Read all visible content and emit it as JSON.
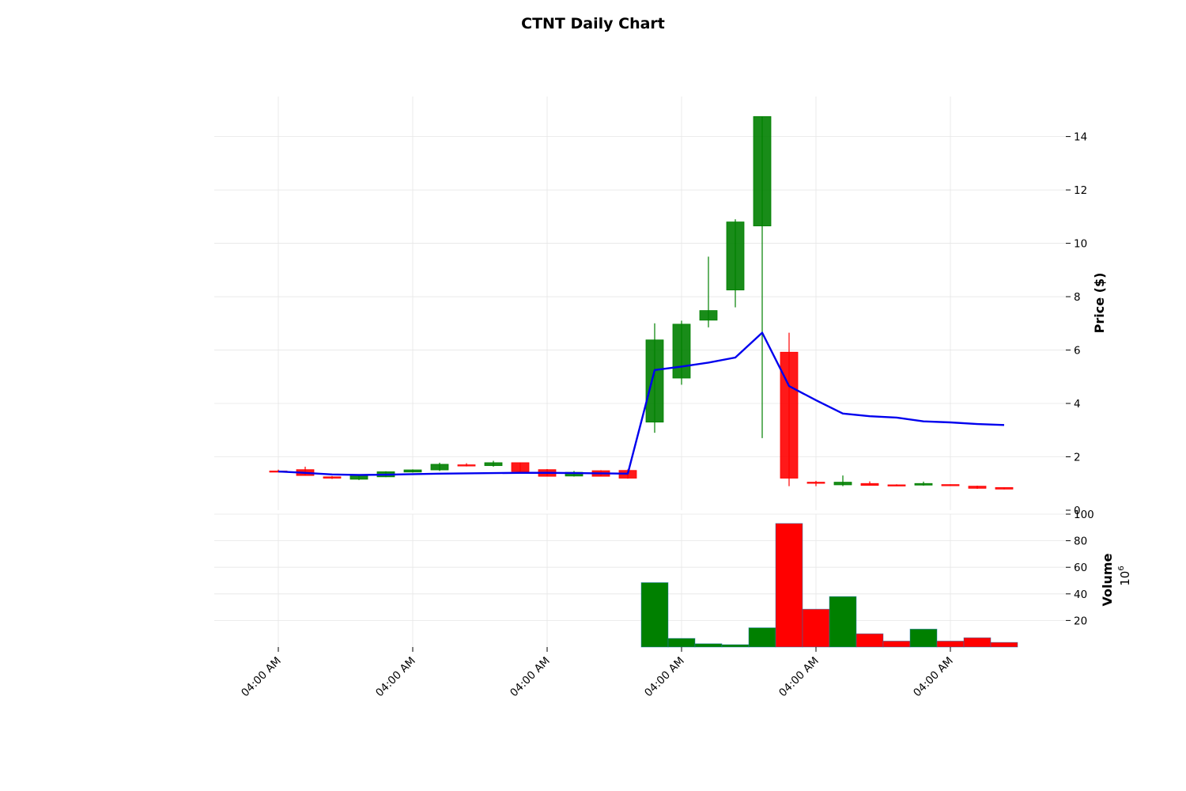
{
  "chart_data": {
    "type": "candlestick",
    "title": "CTNT Daily Chart",
    "price_panel": {
      "ylabel": "Price ($)",
      "ylim": [
        0,
        15.5
      ],
      "yticks": [
        0,
        2,
        4,
        6,
        8,
        10,
        12,
        14
      ],
      "candles": [
        {
          "open": 1.47,
          "high": 1.52,
          "low": 1.44,
          "close": 1.45
        },
        {
          "open": 1.52,
          "high": 1.63,
          "low": 1.3,
          "close": 1.3
        },
        {
          "open": 1.25,
          "high": 1.28,
          "low": 1.17,
          "close": 1.2
        },
        {
          "open": 1.16,
          "high": 1.33,
          "low": 1.13,
          "close": 1.31
        },
        {
          "open": 1.25,
          "high": 1.46,
          "low": 1.24,
          "close": 1.44
        },
        {
          "open": 1.43,
          "high": 1.53,
          "low": 1.41,
          "close": 1.51
        },
        {
          "open": 1.51,
          "high": 1.78,
          "low": 1.47,
          "close": 1.72
        },
        {
          "open": 1.7,
          "high": 1.76,
          "low": 1.64,
          "close": 1.66
        },
        {
          "open": 1.67,
          "high": 1.85,
          "low": 1.63,
          "close": 1.78
        },
        {
          "open": 1.78,
          "high": 1.79,
          "low": 1.44,
          "close": 1.45
        },
        {
          "open": 1.52,
          "high": 1.54,
          "low": 1.26,
          "close": 1.27
        },
        {
          "open": 1.28,
          "high": 1.47,
          "low": 1.26,
          "close": 1.42
        },
        {
          "open": 1.48,
          "high": 1.5,
          "low": 1.27,
          "close": 1.27
        },
        {
          "open": 1.49,
          "high": 1.53,
          "low": 1.18,
          "close": 1.2
        },
        {
          "open": 3.3,
          "high": 7.0,
          "low": 2.9,
          "close": 6.38
        },
        {
          "open": 4.95,
          "high": 7.1,
          "low": 4.7,
          "close": 6.97
        },
        {
          "open": 7.12,
          "high": 9.5,
          "low": 6.85,
          "close": 7.48
        },
        {
          "open": 8.25,
          "high": 10.9,
          "low": 7.6,
          "close": 10.8
        },
        {
          "open": 10.65,
          "high": 14.75,
          "low": 2.7,
          "close": 14.75
        },
        {
          "open": 5.92,
          "high": 6.65,
          "low": 0.9,
          "close": 1.2
        },
        {
          "open": 1.05,
          "high": 1.1,
          "low": 0.9,
          "close": 1.02
        },
        {
          "open": 0.95,
          "high": 1.3,
          "low": 0.9,
          "close": 1.05
        },
        {
          "open": 1.0,
          "high": 1.08,
          "low": 0.92,
          "close": 0.93
        },
        {
          "open": 0.95,
          "high": 0.97,
          "low": 0.91,
          "close": 0.93
        },
        {
          "open": 0.94,
          "high": 1.07,
          "low": 0.92,
          "close": 1.0
        },
        {
          "open": 0.96,
          "high": 0.97,
          "low": 0.92,
          "close": 0.93
        },
        {
          "open": 0.9,
          "high": 0.92,
          "low": 0.8,
          "close": 0.82
        },
        {
          "open": 0.85,
          "high": 0.86,
          "low": 0.78,
          "close": 0.79
        }
      ],
      "moving_average": [
        1.45,
        1.4,
        1.34,
        1.32,
        1.33,
        1.35,
        1.37,
        1.38,
        1.39,
        1.4,
        1.4,
        1.39,
        1.38,
        1.37,
        5.25,
        5.38,
        5.53,
        5.72,
        6.65,
        4.65,
        4.12,
        3.62,
        3.52,
        3.47,
        3.33,
        3.29,
        3.23,
        3.19
      ]
    },
    "volume_panel": {
      "ylabel": "Volume",
      "scale_label": "10",
      "scale_exponent": "6",
      "ylim": [
        0,
        100
      ],
      "yticks": [
        20,
        40,
        60,
        80,
        100
      ],
      "values": [
        0,
        0,
        0,
        0,
        0,
        0,
        0,
        0,
        0,
        0,
        0,
        0,
        0,
        0,
        48.5,
        6.5,
        2.5,
        1.8,
        14.5,
        93.0,
        28.5,
        38.0,
        10.0,
        4.5,
        13.5,
        4.5,
        7.0,
        3.5
      ],
      "directions": [
        "down",
        "down",
        "down",
        "up",
        "up",
        "up",
        "up",
        "down",
        "up",
        "down",
        "down",
        "up",
        "down",
        "down",
        "up",
        "up",
        "up",
        "up",
        "up",
        "down",
        "down",
        "up",
        "down",
        "down",
        "up",
        "down",
        "down",
        "down"
      ]
    },
    "x_ticks": [
      {
        "index": 0.0,
        "label": "04:00 AM"
      },
      {
        "index": 5.0,
        "label": "04:00 AM"
      },
      {
        "index": 10.0,
        "label": "04:00 AM"
      },
      {
        "index": 15.0,
        "label": "04:00 AM"
      },
      {
        "index": 20.0,
        "label": "04:00 AM"
      },
      {
        "index": 25.0,
        "label": "04:00 AM"
      }
    ],
    "colors": {
      "up": "#008000",
      "down": "#ff0000",
      "moving_average": "#0000ee"
    },
    "grid": true,
    "legend": "none"
  }
}
